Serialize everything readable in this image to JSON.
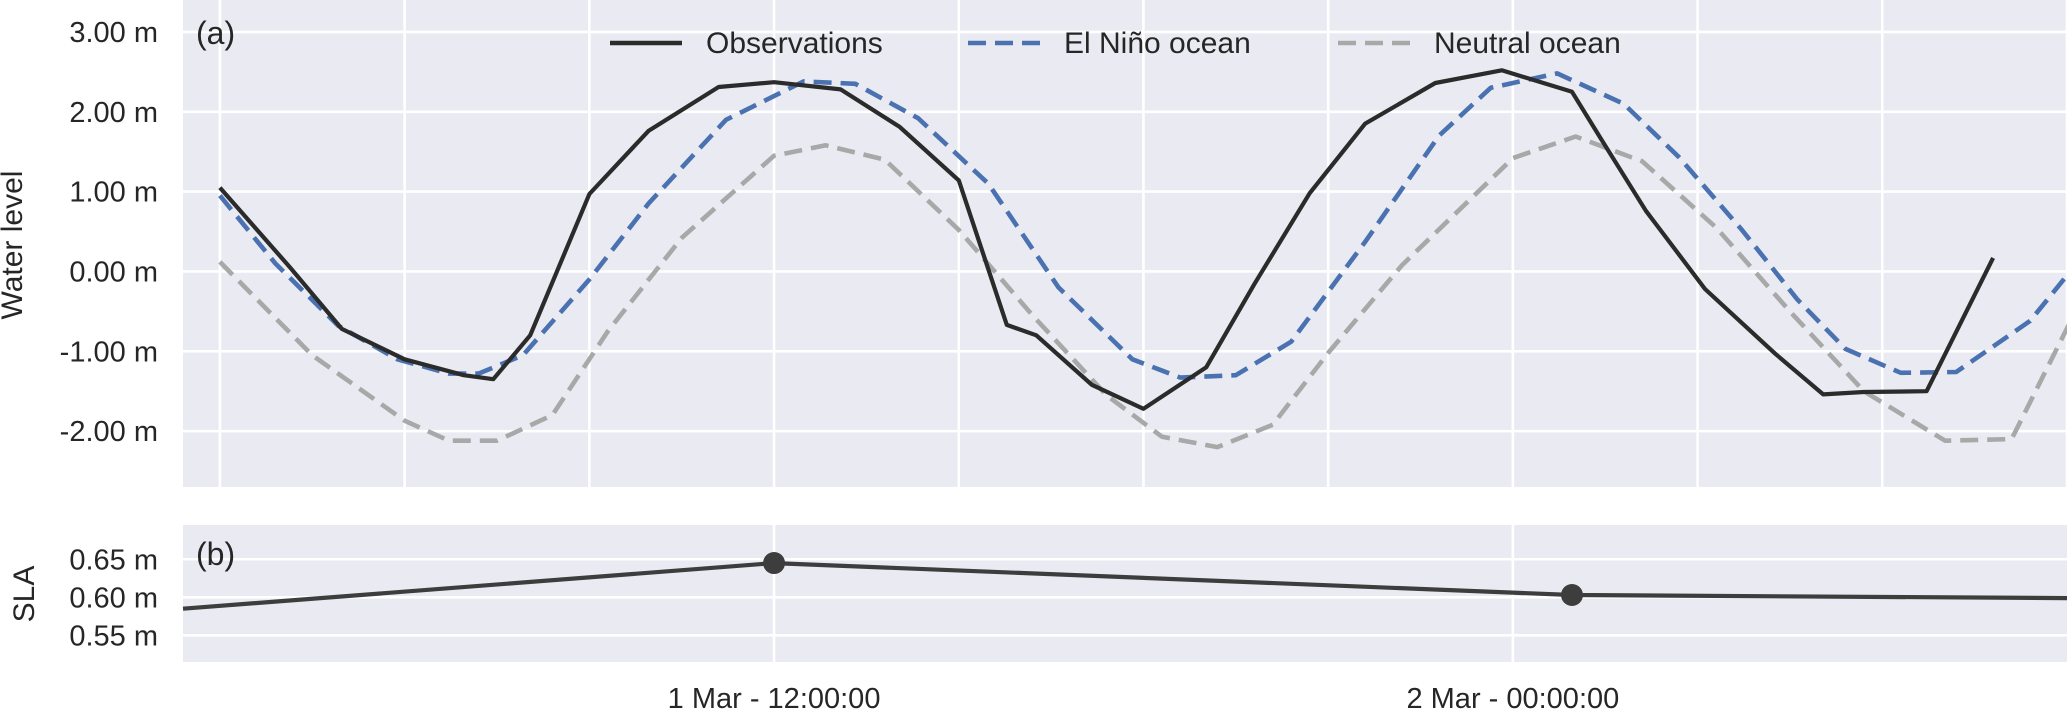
{
  "chart_data": [
    {
      "panel": "(a)",
      "type": "line",
      "ylabel": "Water level",
      "y_unit": " m",
      "ylim": [
        -2.7,
        3.4
      ],
      "y_ticks": [
        -2,
        -1,
        0,
        1,
        2,
        3
      ],
      "y_tick_labels": [
        "-2.00 m",
        "-1.00 m",
        "0.00 m",
        "1.00 m",
        "2.00 m",
        "3.00 m"
      ],
      "xlim_hours": [
        -1,
        50
      ],
      "x_grid_hours": [
        0,
        5,
        10,
        15,
        20,
        25,
        30,
        35,
        40,
        45,
        50
      ],
      "grid": true,
      "legend_placement": "top-center",
      "series": [
        {
          "name": "Observations",
          "style": "solid",
          "color": "#2b2b2b",
          "x_hours": [
            0,
            1.9,
            3.3,
            5,
            6.6,
            7.4,
            8.4,
            10,
            11.6,
            13.5,
            15,
            16.8,
            18.4,
            20,
            21.3,
            22.1,
            23.6,
            25,
            26.7,
            28,
            29.5,
            31,
            32.9,
            34.7,
            36.6,
            37.4,
            38.6,
            40.2,
            42.1,
            43.4,
            44.5,
            46.2,
            48
          ],
          "y": [
            1.05,
            0.05,
            -0.72,
            -1.1,
            -1.3,
            -1.35,
            -0.8,
            0.97,
            1.76,
            2.31,
            2.37,
            2.28,
            1.81,
            1.14,
            -0.67,
            -0.8,
            -1.42,
            -1.72,
            -1.2,
            -0.16,
            0.98,
            1.85,
            2.36,
            2.52,
            2.25,
            1.65,
            0.76,
            -0.22,
            -1.03,
            -1.54,
            -1.51,
            -1.5,
            0.17
          ]
        },
        {
          "name": "El Niño ocean",
          "style": "dashed",
          "color": "#4a72b0",
          "x_hours": [
            0,
            1.5,
            3.2,
            4.8,
            6.2,
            7,
            8.2,
            10,
            11.6,
            13.7,
            15.8,
            17.2,
            18.9,
            20.8,
            22.7,
            24.7,
            26,
            27.5,
            29,
            31,
            33,
            34.4,
            36.2,
            38,
            39.5,
            41.2,
            42.7,
            44,
            45.5,
            47,
            49,
            51
          ],
          "y": [
            0.95,
            0.1,
            -0.68,
            -1.1,
            -1.28,
            -1.28,
            -1.05,
            -0.1,
            0.85,
            1.9,
            2.38,
            2.35,
            1.92,
            1.1,
            -0.2,
            -1.1,
            -1.33,
            -1.3,
            -0.88,
            0.37,
            1.7,
            2.3,
            2.48,
            2.1,
            1.43,
            0.52,
            -0.35,
            -0.97,
            -1.27,
            -1.26,
            -0.62,
            0.52
          ]
        },
        {
          "name": "Neutral ocean",
          "style": "dashed",
          "color": "#a8a8a8",
          "x_hours": [
            0,
            2.5,
            5,
            6.2,
            7.5,
            9,
            10.5,
            12.5,
            15,
            16.4,
            18,
            20,
            22,
            24,
            25.5,
            27,
            28.5,
            30,
            32,
            35,
            36.7,
            38.5,
            40.5,
            42.5,
            44.5,
            46.7,
            48.5,
            50.5
          ],
          "y": [
            0.12,
            -1.05,
            -1.87,
            -2.12,
            -2.12,
            -1.8,
            -0.75,
            0.42,
            1.45,
            1.58,
            1.4,
            0.52,
            -0.55,
            -1.55,
            -2.07,
            -2.2,
            -1.92,
            -1.02,
            0.08,
            1.42,
            1.69,
            1.38,
            0.55,
            -0.5,
            -1.5,
            -2.12,
            -2.1,
            -0.25
          ]
        }
      ]
    },
    {
      "panel": "(b)",
      "type": "line",
      "ylabel": "SLA",
      "y_unit": " m",
      "ylim": [
        0.515,
        0.695
      ],
      "y_ticks": [
        0.55,
        0.6,
        0.65
      ],
      "y_tick_labels": [
        "0.55 m",
        "0.60 m",
        "0.65 m"
      ],
      "xlim_hours": [
        -1,
        50
      ],
      "x_grid_hours": [
        15,
        35
      ],
      "x_tick_labels": [
        "1 Mar - 12:00:00",
        "2 Mar - 00:00:00"
      ],
      "grid": true,
      "series": [
        {
          "color": "#3d3d3d",
          "x_hours": [
            -1,
            15,
            36.6,
            50
          ],
          "y": [
            0.585,
            0.645,
            0.603,
            0.599
          ],
          "markers_x_hours": [
            15,
            36.6
          ],
          "markers_y": [
            0.645,
            0.603
          ]
        }
      ]
    }
  ]
}
